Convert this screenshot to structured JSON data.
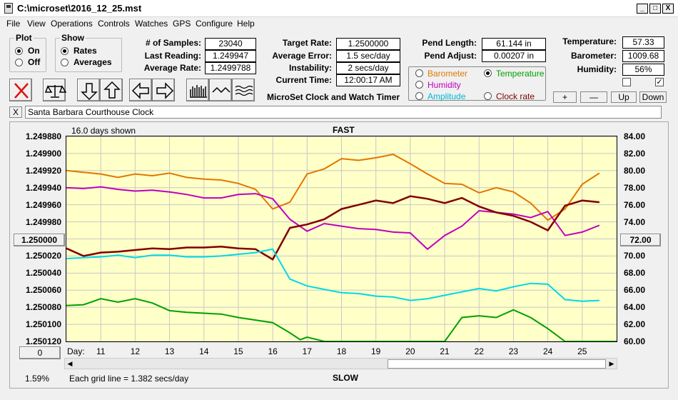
{
  "window": {
    "title": "C:\\microset\\2016_12_25.mst",
    "min": "_",
    "max": "□",
    "close": "X"
  },
  "menu": [
    "File",
    "View",
    "Operations",
    "Controls",
    "Watches",
    "GPS",
    "Configure",
    "Help"
  ],
  "plot_group": {
    "label": "Plot",
    "on": "On",
    "off": "Off",
    "selected": "On"
  },
  "show_group": {
    "label": "Show",
    "rates": "Rates",
    "averages": "Averages",
    "selected": "Rates"
  },
  "stats1": {
    "samples_label": "# of Samples:",
    "samples": "23040",
    "last_reading_label": "Last Reading:",
    "last_reading": "1.249947",
    "average_rate_label": "Average Rate:",
    "average_rate": "1.2499788"
  },
  "stats2": {
    "target_rate_label": "Target Rate:",
    "target_rate": "1.2500000",
    "average_error_label": "Average Error:",
    "average_error": "1.5 sec/day",
    "instability_label": "Instability:",
    "instability": "2 secs/day",
    "current_time_label": "Current Time:",
    "current_time": "12:00:17 AM"
  },
  "stats3": {
    "pend_length_label": "Pend Length:",
    "pend_length": "61.144 in",
    "pend_adjust_label": "Pend Adjust:",
    "pend_adjust": "0.00207 in"
  },
  "env": {
    "temperature_label": "Temperature:",
    "temperature": "57.33",
    "barometer_label": "Barometer:",
    "barometer": "1009.68",
    "humidity_label": "Humidity:",
    "humidity": "56%"
  },
  "series_select": {
    "barometer": "Barometer",
    "temperature": "Temperature",
    "humidity": "Humidity",
    "amplitude": "Amplitude",
    "clock_rate": "Clock rate",
    "selected": "Temperature",
    "colors": {
      "barometer": "#e07800",
      "temperature": "#00a000",
      "humidity": "#c000c0",
      "amplitude": "#00c8d8",
      "clock_rate": "#800000"
    }
  },
  "app_subtitle": "MicroSet Clock and Watch Timer",
  "adjust_buttons": {
    "plus": "+",
    "minus": "—",
    "up": "Up",
    "down": "Down"
  },
  "clock_name": "Santa Barbara Courthouse Clock",
  "clear_button": "X",
  "chart_header": {
    "days_shown": "16.0 days shown",
    "fast": "FAST",
    "slow": "SLOW"
  },
  "chart_footer": {
    "percent": "1.59%",
    "grid_note": "Each grid line = 1.382 secs/day",
    "day_label": "Day:"
  },
  "left_center_value": "1.250000",
  "right_center_value": "72.00",
  "left_bottom_button": "0",
  "chart_data": {
    "type": "line",
    "x_label": "Day:",
    "x_ticks": [
      "11",
      "12",
      "13",
      "14",
      "15",
      "16",
      "17",
      "18",
      "19",
      "20",
      "21",
      "22",
      "23",
      "24",
      "25"
    ],
    "x_range": [
      10.0,
      26.0
    ],
    "left_axis": {
      "ticks": [
        "1.249880",
        "1.249900",
        "1.249920",
        "1.249940",
        "1.249960",
        "1.249980",
        "1.250000",
        "1.250020",
        "1.250040",
        "1.250060",
        "1.250080",
        "1.250100",
        "1.250120"
      ],
      "range": [
        1.24988,
        1.25012
      ],
      "inverted": true
    },
    "right_axis": {
      "ticks": [
        "84.00",
        "82.00",
        "80.00",
        "78.00",
        "76.00",
        "74.00",
        "72.00",
        "70.00",
        "68.00",
        "66.00",
        "64.00",
        "62.00",
        "60.00"
      ],
      "range": [
        60,
        84
      ]
    },
    "grid": true,
    "series": [
      {
        "color": "#e07800",
        "axis": "right",
        "x": [
          10,
          10.5,
          11,
          11.5,
          12,
          12.5,
          13,
          13.5,
          14,
          14.5,
          15,
          15.5,
          16,
          16.5,
          17,
          17.5,
          18,
          18.5,
          19,
          19.5,
          20,
          20.5,
          21,
          21.5,
          22,
          22.5,
          23,
          23.5,
          24,
          24.5,
          25,
          25.5
        ],
        "y": [
          80,
          79.8,
          79.6,
          79.2,
          79.6,
          79.4,
          79.7,
          79.2,
          79.0,
          78.9,
          78.5,
          77.8,
          75.5,
          76.3,
          79.6,
          80.2,
          81.4,
          81.2,
          81.5,
          81.9,
          80.8,
          79.6,
          78.5,
          78.4,
          77.4,
          78.0,
          77.5,
          76.2,
          74.2,
          75.5,
          78.4,
          79.7
        ]
      },
      {
        "color": "#c000c0",
        "axis": "right",
        "x": [
          10,
          10.5,
          11,
          11.5,
          12,
          12.5,
          13,
          13.5,
          14,
          14.5,
          15,
          15.5,
          16,
          16.5,
          17,
          17.5,
          18,
          18.5,
          19,
          19.5,
          20,
          20.5,
          21,
          21.5,
          22,
          22.5,
          23,
          23.5,
          24,
          24.5,
          25,
          25.5
        ],
        "y": [
          78.0,
          77.9,
          78.1,
          77.8,
          77.6,
          77.7,
          77.5,
          77.2,
          76.8,
          76.8,
          77.2,
          77.3,
          76.7,
          74.3,
          72.9,
          73.8,
          73.5,
          73.2,
          73.1,
          72.8,
          72.7,
          70.8,
          72.4,
          73.5,
          75.3,
          75.1,
          74.9,
          74.5,
          75.2,
          72.4,
          72.8,
          73.6
        ]
      },
      {
        "color": "#800000",
        "axis": "left",
        "x": [
          10,
          10.5,
          11,
          11.5,
          12,
          12.5,
          13,
          13.5,
          14,
          14.5,
          15,
          15.5,
          16,
          16.5,
          17,
          17.5,
          18,
          18.5,
          19,
          19.5,
          20,
          20.5,
          21,
          21.5,
          22,
          22.5,
          23,
          23.5,
          24,
          24.5,
          25,
          25.5
        ],
        "y": [
          1.250011,
          1.25002,
          1.250016,
          1.250015,
          1.250013,
          1.250011,
          1.250012,
          1.25001,
          1.25001,
          1.250009,
          1.250011,
          1.250012,
          1.250024,
          1.249987,
          1.249983,
          1.249977,
          1.249965,
          1.24996,
          1.249955,
          1.249958,
          1.24995,
          1.249953,
          1.249958,
          1.249952,
          1.249962,
          1.249969,
          1.249973,
          1.24998,
          1.24999,
          1.249961,
          1.249955,
          1.249957
        ]
      },
      {
        "color": "#00d8e8",
        "axis": "left",
        "x": [
          10,
          10.5,
          11,
          11.5,
          12,
          12.5,
          13,
          13.5,
          14,
          14.5,
          15,
          15.5,
          16,
          16.5,
          17,
          17.5,
          18,
          18.5,
          19,
          19.5,
          20,
          20.5,
          21,
          21.5,
          22,
          22.5,
          23,
          23.5,
          24,
          24.5,
          25,
          25.5
        ],
        "y": [
          1.250023,
          1.250022,
          1.250021,
          1.250019,
          1.250022,
          1.250019,
          1.250019,
          1.250021,
          1.250021,
          1.25002,
          1.250018,
          1.250016,
          1.250012,
          1.250047,
          1.250055,
          1.250059,
          1.250063,
          1.250064,
          1.250067,
          1.250068,
          1.250072,
          1.25007,
          1.250066,
          1.250062,
          1.250058,
          1.250061,
          1.250056,
          1.250052,
          1.250053,
          1.250071,
          1.250073,
          1.250072
        ]
      },
      {
        "color": "#00a000",
        "axis": "right",
        "x": [
          10,
          10.5,
          11,
          11.5,
          12,
          12.5,
          13,
          13.5,
          14,
          14.5,
          15,
          15.5,
          16,
          16.5,
          16.8,
          17,
          17.5,
          18,
          19,
          20,
          20.5,
          21,
          21.5,
          22,
          22.5,
          23,
          23.5,
          24,
          24.5,
          25,
          26
        ],
        "y": [
          64.2,
          64.3,
          65.0,
          64.6,
          65.0,
          64.5,
          63.6,
          63.4,
          63.3,
          63.2,
          62.8,
          62.5,
          62.2,
          61.0,
          60.2,
          60.5,
          60.0,
          60.0,
          60.0,
          60.0,
          60.0,
          60.0,
          62.8,
          63.0,
          62.8,
          63.7,
          62.8,
          61.5,
          60.0,
          60.0,
          60.0
        ]
      }
    ]
  }
}
